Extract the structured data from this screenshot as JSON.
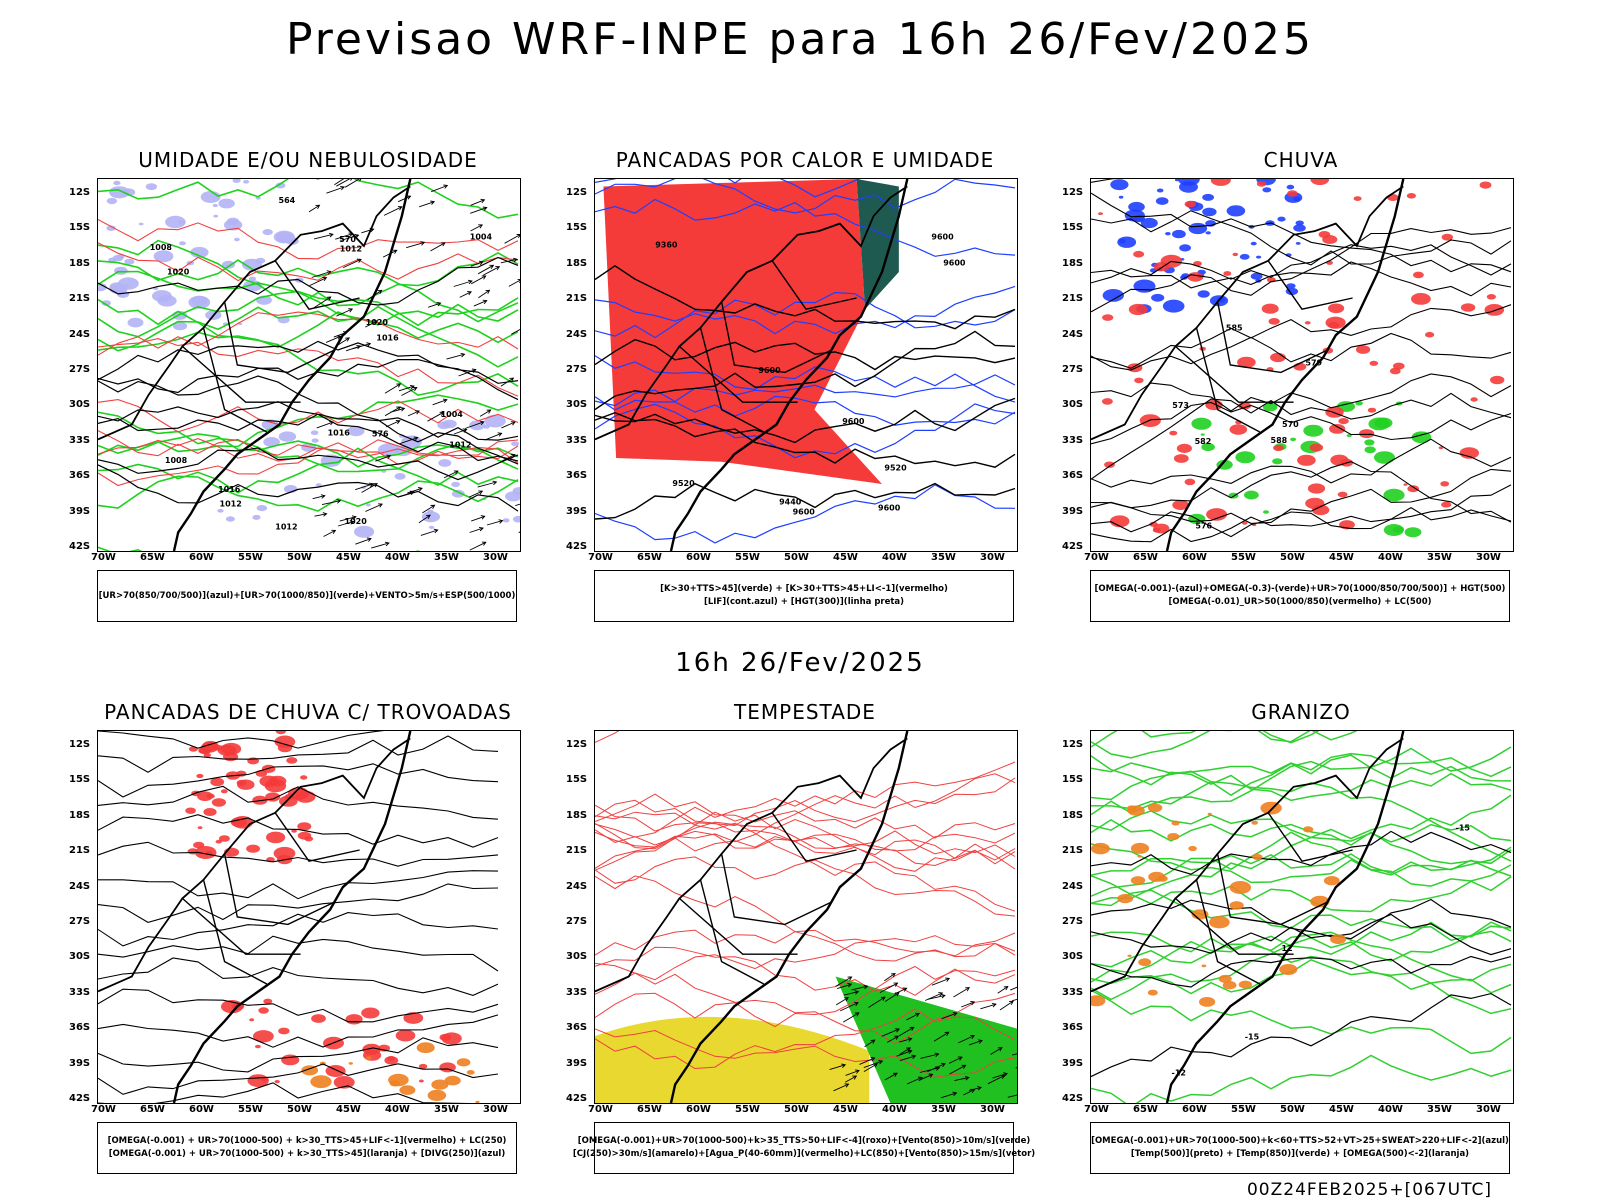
{
  "main_title": "Previsao WRF-INPE  para 16h 26/Fev/2025",
  "mid_title": "16h 26/Fev/2025",
  "footer_stamp": "00Z24FEB2025+[067UTC]",
  "lat_ticks": [
    "12S",
    "15S",
    "18S",
    "21S",
    "24S",
    "27S",
    "30S",
    "33S",
    "36S",
    "39S",
    "42S"
  ],
  "lon_ticks": [
    "70W",
    "65W",
    "60W",
    "55W",
    "50W",
    "45W",
    "40W",
    "35W",
    "30W"
  ],
  "panels": [
    {
      "title": "UMIDADE E/OU NEBULOSIDADE",
      "legend": [
        "[UR>70(850/700/500)](azul)+[UR>70(1000/850)](verde)+VENTO>5m/s+ESP(500/1000)"
      ],
      "labels": [
        "1008",
        "1012",
        "1008",
        "1004",
        "1004",
        "1016",
        "1012",
        "1016",
        "1020",
        "1012",
        "1016",
        "1020",
        "576",
        "570",
        "564",
        "1020",
        "1012"
      ],
      "colors": {
        "fill": "#b3b3f5",
        "line1": "#1fd11f",
        "line2": "#f04040"
      }
    },
    {
      "title": "PANCADAS POR CALOR E UMIDADE",
      "legend": [
        "[K>30+TTS>45](verde) + [K>30+TTS>45+LI<-1](vermelho)",
        "[LIF](cont.azul) + [HGT(300)](linha preta)"
      ],
      "labels": [
        "9600",
        "9600",
        "9600",
        "9600",
        "9520",
        "9440",
        "9360",
        "9600",
        "9520",
        "9600"
      ],
      "colors": {
        "fill": "#f53a3a",
        "line1": "#1f3fff",
        "line2": "#1f5a50"
      }
    },
    {
      "title": "CHUVA",
      "legend": [
        "[OMEGA(-0.001)-(azul)+OMEGA(-0.3)-(verde)+UR>70(1000/850/700/500)] + HGT(500)",
        "[OMEGA(-0.01)_UR>50(1000/850)(vermelho) + LC(500)"
      ],
      "labels": [
        "582",
        "579",
        "576",
        "573",
        "570",
        "585",
        "588"
      ],
      "colors": {
        "fill": "#f53a3a",
        "line1": "#1f3fff",
        "line2": "#20d020"
      }
    },
    {
      "title": "PANCADAS DE CHUVA C/ TROVOADAS",
      "legend": [
        "[OMEGA(-0.001) + UR>70(1000-500) + k>30_TTS>45+LIF<-1](vermelho) + LC(250)",
        "[OMEGA(-0.001) + UR>70(1000-500) + k>30_TTS>45](laranja) + [DIVG(250)](azul)"
      ],
      "labels": [],
      "colors": {
        "fill": "#f53a3a",
        "line1": "#f08020",
        "line2": "#2f3fff"
      }
    },
    {
      "title": "TEMPESTADE",
      "legend": [
        "[OMEGA(-0.001)+UR>70(1000-500)+k>35_TTS>50+LIF<-4](roxo)+[Vento(850)>10m/s](verde)",
        "[CJ(250)>30m/s](amarelo)+[Agua_P(40-60mm)](vermelho)+LC(850)+[Vento(850)>15m/s](vetor)"
      ],
      "labels": [],
      "colors": {
        "fill": "#e8d830",
        "line1": "#f04040",
        "line2": "#20c020"
      }
    },
    {
      "title": "GRANIZO",
      "legend": [
        "[OMEGA(-0.001)+UR>70(1000-500)+k<60+TTS>52+VT>25+SWEAT>220+LIF<-2](azul)",
        "[Temp(500)](preto) + [Temp(850)](verde) + [OMEGA(500)<-2](laranja)"
      ],
      "labels": [
        "-15",
        "-12",
        "12",
        "-15"
      ],
      "colors": {
        "fill": "#f08020",
        "line1": "#30d030",
        "line2": "#000000"
      }
    }
  ]
}
